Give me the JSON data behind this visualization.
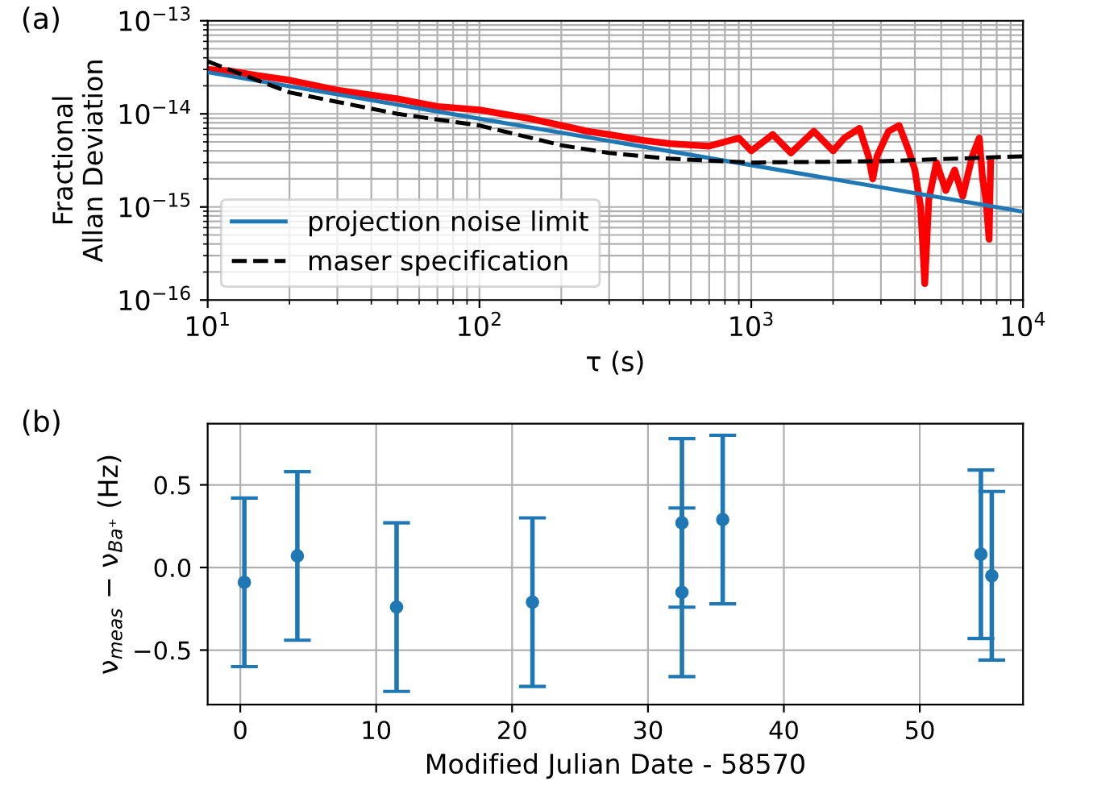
{
  "chart_data": [
    {
      "type": "line",
      "annotations": [
        "(a)"
      ],
      "xlabel": "τ (s)",
      "ylabel": "Fractional\nAllan Deviation",
      "log": "xy",
      "grid": true,
      "legend": "bottom left",
      "xlim": [
        10,
        10000
      ],
      "ylim": [
        1e-16,
        1e-13
      ],
      "xticks": [
        {
          "value": 10,
          "label": "10$^{1}$"
        },
        {
          "value": 100,
          "label": "10$^{2}$"
        },
        {
          "value": 1000,
          "label": "10$^{3}$"
        },
        {
          "value": 10000,
          "label": "10$^{4}$"
        }
      ],
      "yticks": [
        {
          "value": 1e-16,
          "label": "10$^{−16}$"
        },
        {
          "value": 1e-15,
          "label": "10$^{−15}$"
        },
        {
          "value": 1e-14,
          "label": "10$^{−14}$"
        },
        {
          "value": 1e-13,
          "label": "10$^{−13}$"
        }
      ],
      "series": [
        {
          "color": "#ff0000",
          "x": [
            10,
            12,
            15,
            20,
            30,
            50,
            70,
            100,
            150,
            200,
            250,
            300,
            400,
            500,
            700,
            900,
            1000,
            1200,
            1400,
            1700,
            2000,
            2200,
            2500,
            2700,
            2800,
            2900,
            3200,
            3500,
            3800,
            4000,
            4200,
            4350,
            4500,
            4800,
            5200,
            5600,
            6000,
            6500,
            6900,
            7100,
            7300,
            7500,
            7600
          ],
          "values": [
            3e-14,
            2.9e-14,
            2.6e-14,
            2.3e-14,
            1.8e-14,
            1.45e-14,
            1.2e-14,
            1.1e-14,
            9e-15,
            7.5e-15,
            6.5e-15,
            6e-15,
            5.2e-15,
            4.8e-15,
            4.5e-15,
            5.5e-15,
            4e-15,
            6e-15,
            3.8e-15,
            6.5e-15,
            4e-15,
            5.5e-15,
            7e-15,
            3.5e-15,
            2e-15,
            3.5e-15,
            6.5e-15,
            7.5e-15,
            4e-15,
            2.5e-15,
            1e-15,
            1.5e-16,
            1.2e-15,
            3e-15,
            1.5e-15,
            2.5e-15,
            1.3e-15,
            3.5e-15,
            5.5e-15,
            2e-15,
            1.2e-15,
            4.5e-16,
            3e-15
          ]
        },
        {
          "name": "projection noise limit",
          "color": "#1f77b4",
          "x": [
            10,
            10000
          ],
          "values": [
            2.8e-14,
            8.9e-16
          ]
        },
        {
          "name": "maser specification",
          "color": "#000000",
          "line_style": "dashed",
          "x": [
            10,
            20,
            50,
            100,
            200,
            300,
            500,
            1000,
            3000,
            10000
          ],
          "values": [
            3.66e-14,
            1.7e-14,
            1e-14,
            7.5e-15,
            4.6e-15,
            3.8e-15,
            3.3e-15,
            3e-15,
            3.1e-15,
            3.5e-15
          ]
        }
      ]
    },
    {
      "type": "scatter",
      "annotations": [
        "(b)"
      ],
      "xlabel": "Modified Julian Date - 58570",
      "ylabel": "ν$_{meas}$ − ν$_{Ba⁺}$ (Hz)",
      "grid": true,
      "marker": "circle",
      "xlim": [
        -2.4,
        57.6
      ],
      "ylim": [
        -0.83,
        0.87
      ],
      "xticks": [
        0,
        10,
        20,
        30,
        40,
        50
      ],
      "yticks": [
        {
          "value": -0.5,
          "label": "−0.5"
        },
        {
          "value": 0.0,
          "label": "0.0"
        },
        {
          "value": 0.5,
          "label": "0.5"
        }
      ],
      "series": [
        {
          "color": "#1f77b4",
          "x": [
            0.3,
            4.2,
            11.5,
            21.5,
            32.5,
            32.5,
            35.5,
            54.5,
            55.3
          ],
          "values": [
            -0.09,
            0.07,
            -0.24,
            -0.21,
            0.27,
            -0.15,
            0.29,
            0.08,
            -0.05
          ],
          "errors": [
            0.51,
            0.51,
            0.51,
            0.51,
            0.51,
            0.51,
            0.51,
            0.51,
            0.51
          ]
        }
      ]
    }
  ]
}
